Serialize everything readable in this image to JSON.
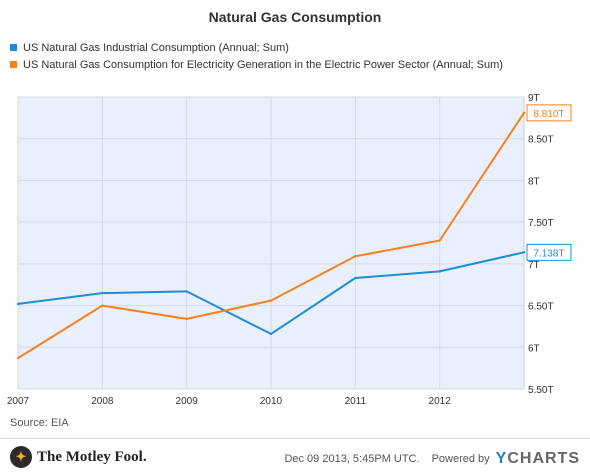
{
  "chart_data": {
    "type": "line",
    "title": "Natural Gas Consumption",
    "x": [
      "2007",
      "2008",
      "2009",
      "2010",
      "2011",
      "2012",
      "2013"
    ],
    "x_tick_labels": [
      "2007",
      "2008",
      "2009",
      "2010",
      "2011",
      "2012"
    ],
    "y_unit": "trillion cubic feet (T)",
    "ylim": [
      5.5,
      9
    ],
    "y_ticks": [
      "9T",
      "8.50T",
      "8T",
      "7.50T",
      "7T",
      "6.50T",
      "6T",
      "5.50T"
    ],
    "y_tick_values": [
      9,
      8.5,
      8,
      7.5,
      7,
      6.5,
      6,
      5.5
    ],
    "grid": true,
    "legend_placement": "top-left",
    "series": [
      {
        "name": "US Natural Gas Industrial Consumption (Annual; Sum)",
        "color": "#1f8dd6",
        "values": [
          6.52,
          6.65,
          6.67,
          6.16,
          6.83,
          6.91,
          7.138
        ],
        "end_label": "7.138T"
      },
      {
        "name": "US Natural Gas Consumption for Electricity Generation in the Electric Power Sector (Annual; Sum)",
        "color": "#f58220",
        "values": [
          5.87,
          6.5,
          6.34,
          6.56,
          7.09,
          7.28,
          8.81
        ],
        "end_label": "8.810T"
      }
    ]
  },
  "source": "Source: EIA",
  "footer": {
    "logo_text": "The Motley Fool.",
    "timestamp": "Dec 09 2013, 5:45PM UTC.",
    "powered_by": "Powered by",
    "brand": "YCHARTS",
    "brand_y": "Y",
    "brand_rest": "CHARTS"
  }
}
